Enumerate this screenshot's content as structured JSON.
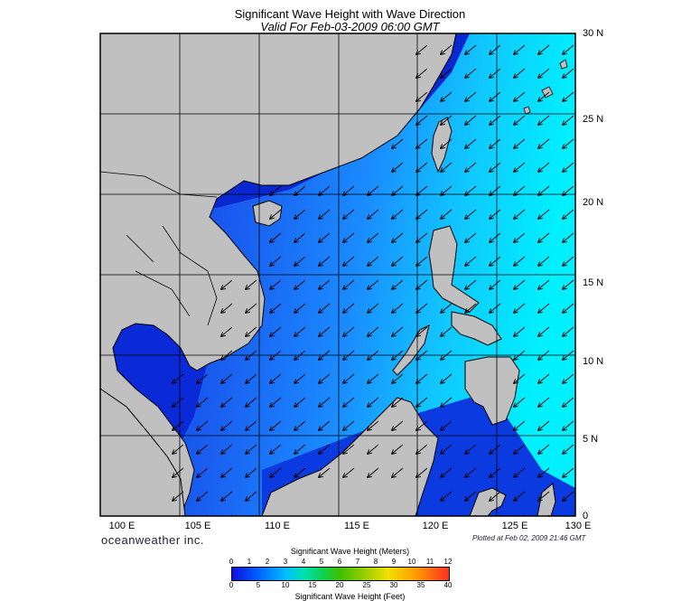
{
  "header": {
    "title": "Significant Wave Height with Wave Direction",
    "subtitle": "Valid For Feb-03-2009 06:00 GMT"
  },
  "axes": {
    "lon_labels": [
      "100 E",
      "105 E",
      "110 E",
      "115 E",
      "120 E",
      "125 E",
      "130 E"
    ],
    "lat_labels": [
      "30 N",
      "25 N",
      "20 N",
      "15 N",
      "10 N",
      "5 N",
      "0"
    ]
  },
  "footer": {
    "brand": "oceanweather inc.",
    "plotted": "Plotted at Feb 02, 2009 21:46 GMT"
  },
  "colorbar": {
    "title_meters": "Significant Wave Height (Meters)",
    "title_feet": "Significant Wave Height (Feet)",
    "meter_ticks": [
      "0",
      "1",
      "2",
      "3",
      "4",
      "5",
      "6",
      "7",
      "8",
      "9",
      "10",
      "11",
      "12"
    ],
    "feet_ticks": [
      "0",
      "5",
      "10",
      "15",
      "20",
      "25",
      "30",
      "35",
      "40"
    ]
  },
  "colors": {
    "land": "#c0c0c0",
    "deep_blue": "#0a2ad8",
    "mid_blue": "#1e6cf0",
    "light_blue": "#1aa8ff",
    "cyan": "#00e8ff"
  },
  "wave_direction": "towards south-west (from north-east monsoon)"
}
